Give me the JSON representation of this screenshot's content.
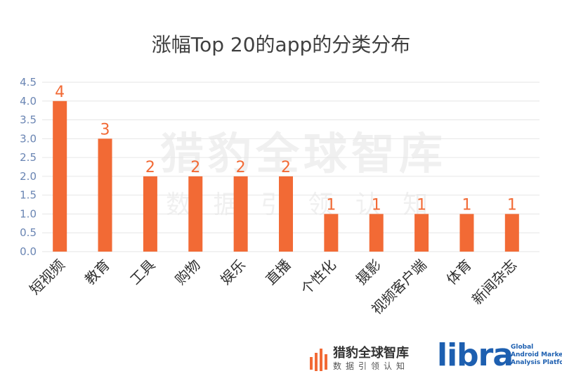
{
  "chart_data": {
    "type": "bar",
    "title": "涨幅Top 20的app的分类分布",
    "categories": [
      "短视频",
      "教育",
      "工具",
      "购物",
      "娱乐",
      "直播",
      "个性化",
      "摄影",
      "视频客户端",
      "体育",
      "新闻杂志"
    ],
    "values": [
      4,
      3,
      2,
      2,
      2,
      2,
      1,
      1,
      1,
      1,
      1
    ],
    "ylim": [
      0,
      4.5
    ],
    "yticks": [
      "0.0",
      "0.5",
      "1.0",
      "1.5",
      "2.0",
      "2.5",
      "3.0",
      "3.5",
      "4.0",
      "4.5"
    ],
    "grid": true,
    "colors": {
      "bar": "#f26a35",
      "tick": "#6a85b3",
      "data_label": "#f26a35"
    }
  },
  "watermark": {
    "title": "猎豹全球智库",
    "subtitle": "数 据 引 领 认 知"
  },
  "footer": {
    "brand1_name": "猎豹全球智库",
    "brand1_sub": "数据引领认知",
    "brand2_logo": "libra",
    "brand2_tag": [
      "Global",
      "Android Market",
      "Analysis Platform"
    ]
  }
}
